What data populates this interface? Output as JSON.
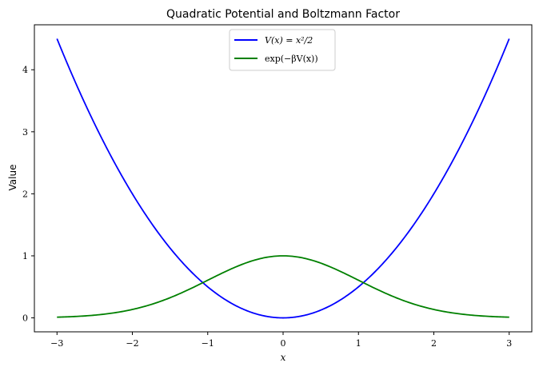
{
  "chart_data": {
    "type": "line",
    "title": "Quadratic Potential and Boltzmann Factor",
    "xlabel": "x",
    "ylabel": "Value",
    "xlim": [
      -3.3,
      3.3
    ],
    "ylim": [
      -0.225,
      4.725
    ],
    "xticks": [
      -3,
      -2,
      -1,
      0,
      1,
      2,
      3
    ],
    "xtick_labels": [
      "−3",
      "−2",
      "−1",
      "0",
      "1",
      "2",
      "3"
    ],
    "yticks": [
      0,
      1,
      2,
      3,
      4
    ],
    "ytick_labels": [
      "0",
      "1",
      "2",
      "3",
      "4"
    ],
    "grid": false,
    "legend": {
      "location": "upper center"
    },
    "x_range": [
      -3,
      3
    ],
    "series": [
      {
        "name": "V(x) = x²/2",
        "color": "#0000ff",
        "function": "x*x/2"
      },
      {
        "name": "exp(−βV(x))",
        "color": "#008000",
        "function": "exp(-x*x/2)"
      }
    ]
  }
}
